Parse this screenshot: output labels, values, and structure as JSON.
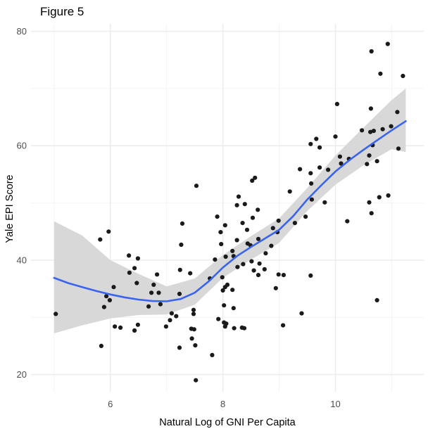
{
  "figure": {
    "title": "Figure 5"
  },
  "chart_data": {
    "type": "scatter",
    "title": "Figure 5",
    "xlabel": "Natural Log of GNI Per Capita",
    "ylabel": "Yale EPI Score",
    "x_domain": [
      4.59,
      11.57
    ],
    "y_domain": [
      17.0,
      81.3
    ],
    "x_major_ticks": [
      6,
      8,
      10
    ],
    "x_minor_ticks": [
      5,
      7,
      9,
      11
    ],
    "y_major_ticks": [
      20,
      40,
      60,
      80
    ],
    "y_minor_ticks": [
      30,
      50,
      70
    ],
    "grid": true,
    "legend_position": "none",
    "points": [
      [
        5.03,
        30.6
      ],
      [
        5.82,
        43.6
      ],
      [
        5.97,
        45.0
      ],
      [
        5.84,
        25.0
      ],
      [
        5.89,
        31.8
      ],
      [
        5.93,
        33.7
      ],
      [
        5.99,
        33.0
      ],
      [
        6.06,
        35.3
      ],
      [
        6.08,
        28.4
      ],
      [
        6.18,
        28.2
      ],
      [
        6.33,
        40.8
      ],
      [
        6.34,
        37.8
      ],
      [
        6.43,
        38.6
      ],
      [
        6.43,
        27.7
      ],
      [
        6.47,
        36.0
      ],
      [
        6.49,
        40.3
      ],
      [
        6.49,
        28.7
      ],
      [
        6.68,
        31.9
      ],
      [
        6.73,
        34.3
      ],
      [
        6.77,
        35.7
      ],
      [
        6.83,
        37.5
      ],
      [
        6.86,
        34.3
      ],
      [
        6.89,
        32.3
      ],
      [
        6.99,
        28.4
      ],
      [
        7.06,
        29.5
      ],
      [
        7.09,
        30.7
      ],
      [
        7.17,
        30.2
      ],
      [
        7.23,
        34.1
      ],
      [
        7.23,
        24.7
      ],
      [
        7.24,
        38.3
      ],
      [
        7.26,
        42.7
      ],
      [
        7.28,
        46.4
      ],
      [
        7.42,
        37.7
      ],
      [
        7.44,
        28.0
      ],
      [
        7.45,
        26.3
      ],
      [
        7.48,
        31.3
      ],
      [
        7.48,
        30.6
      ],
      [
        7.49,
        27.9
      ],
      [
        7.51,
        25.1
      ],
      [
        7.52,
        19.0
      ],
      [
        7.53,
        53.0
      ],
      [
        7.77,
        36.8
      ],
      [
        7.81,
        23.4
      ],
      [
        7.86,
        40.1
      ],
      [
        7.9,
        47.6
      ],
      [
        7.92,
        29.7
      ],
      [
        7.96,
        44.9
      ],
      [
        7.97,
        42.8
      ],
      [
        7.99,
        37.0
      ],
      [
        8.0,
        34.7
      ],
      [
        8.02,
        32.1
      ],
      [
        8.02,
        29.1
      ],
      [
        8.04,
        46.1
      ],
      [
        8.04,
        35.3
      ],
      [
        8.04,
        28.4
      ],
      [
        8.05,
        40.6
      ],
      [
        8.06,
        28.9
      ],
      [
        8.08,
        35.7
      ],
      [
        8.17,
        41.6
      ],
      [
        8.17,
        34.8
      ],
      [
        8.19,
        40.7
      ],
      [
        8.19,
        31.6
      ],
      [
        8.2,
        28.1
      ],
      [
        8.25,
        49.6
      ],
      [
        8.25,
        43.5
      ],
      [
        8.26,
        38.8
      ],
      [
        8.28,
        51.1
      ],
      [
        8.34,
        28.2
      ],
      [
        8.35,
        46.5
      ],
      [
        8.36,
        39.3
      ],
      [
        8.38,
        28.1
      ],
      [
        8.39,
        49.8
      ],
      [
        8.43,
        45.3
      ],
      [
        8.44,
        42.9
      ],
      [
        8.49,
        42.6
      ],
      [
        8.51,
        39.8
      ],
      [
        8.52,
        53.9
      ],
      [
        8.53,
        47.4
      ],
      [
        8.55,
        38.2
      ],
      [
        8.57,
        54.4
      ],
      [
        8.62,
        48.8
      ],
      [
        8.63,
        43.7
      ],
      [
        8.63,
        37.4
      ],
      [
        8.65,
        39.4
      ],
      [
        8.74,
        38.4
      ],
      [
        8.76,
        41.2
      ],
      [
        8.86,
        42.5
      ],
      [
        8.89,
        45.6
      ],
      [
        8.94,
        35.1
      ],
      [
        8.97,
        44.9
      ],
      [
        8.99,
        46.9
      ],
      [
        8.99,
        37.5
      ],
      [
        9.07,
        28.6
      ],
      [
        9.08,
        37.4
      ],
      [
        9.19,
        52.0
      ],
      [
        9.28,
        46.5
      ],
      [
        9.37,
        55.9
      ],
      [
        9.4,
        30.7
      ],
      [
        9.47,
        47.6
      ],
      [
        9.56,
        60.3
      ],
      [
        9.56,
        55.2
      ],
      [
        9.56,
        37.3
      ],
      [
        9.57,
        53.4
      ],
      [
        9.58,
        50.6
      ],
      [
        9.66,
        61.2
      ],
      [
        9.72,
        59.7
      ],
      [
        9.72,
        56.2
      ],
      [
        9.81,
        50.1
      ],
      [
        9.87,
        55.8
      ],
      [
        10.0,
        61.6
      ],
      [
        10.03,
        67.3
      ],
      [
        10.08,
        58.1
      ],
      [
        10.1,
        56.9
      ],
      [
        10.21,
        46.8
      ],
      [
        10.24,
        57.7
      ],
      [
        10.47,
        62.7
      ],
      [
        10.56,
        56.8
      ],
      [
        10.6,
        58.3
      ],
      [
        10.6,
        50.1
      ],
      [
        10.62,
        62.4
      ],
      [
        10.63,
        66.5
      ],
      [
        10.64,
        76.5
      ],
      [
        10.64,
        48.2
      ],
      [
        10.66,
        60.1
      ],
      [
        10.68,
        62.6
      ],
      [
        10.74,
        57.3
      ],
      [
        10.74,
        33.0
      ],
      [
        10.78,
        51.0
      ],
      [
        10.8,
        72.6
      ],
      [
        10.84,
        62.9
      ],
      [
        10.93,
        77.8
      ],
      [
        10.94,
        51.3
      ],
      [
        10.99,
        63.4
      ],
      [
        11.1,
        65.9
      ],
      [
        11.12,
        59.5
      ],
      [
        11.2,
        72.2
      ]
    ],
    "smooth_line": [
      [
        5.0,
        36.9
      ],
      [
        5.25,
        36.0
      ],
      [
        5.5,
        35.3
      ],
      [
        5.75,
        34.6
      ],
      [
        6.0,
        34.0
      ],
      [
        6.25,
        33.5
      ],
      [
        6.5,
        33.1
      ],
      [
        6.75,
        32.85
      ],
      [
        7.0,
        32.8
      ],
      [
        7.25,
        33.2
      ],
      [
        7.5,
        34.3
      ],
      [
        7.75,
        36.3
      ],
      [
        8.0,
        38.7
      ],
      [
        8.25,
        40.7
      ],
      [
        8.5,
        42.3
      ],
      [
        8.75,
        43.8
      ],
      [
        9.0,
        45.3
      ],
      [
        9.25,
        47.7
      ],
      [
        9.5,
        50.6
      ],
      [
        9.75,
        53.1
      ],
      [
        10.0,
        55.5
      ],
      [
        10.25,
        57.5
      ],
      [
        10.5,
        59.3
      ],
      [
        10.75,
        61.0
      ],
      [
        11.0,
        62.7
      ],
      [
        11.25,
        64.3
      ]
    ],
    "confidence_band": [
      [
        5.0,
        46.8,
        27.2
      ],
      [
        5.5,
        44.3,
        28.6
      ],
      [
        6.0,
        40.0,
        29.8
      ],
      [
        6.5,
        37.6,
        30.4
      ],
      [
        7.0,
        35.4,
        30.5
      ],
      [
        7.5,
        36.8,
        32.2
      ],
      [
        8.0,
        40.9,
        36.9
      ],
      [
        8.5,
        44.2,
        40.1
      ],
      [
        9.0,
        47.3,
        43.0
      ],
      [
        9.5,
        52.6,
        48.6
      ],
      [
        10.0,
        58.3,
        53.2
      ],
      [
        10.5,
        63.2,
        56.6
      ],
      [
        11.0,
        68.0,
        59.4
      ],
      [
        11.25,
        70.0,
        58.9
      ]
    ],
    "colors": {
      "smooth_line": "#3A64EC",
      "confidence_band": "#D8D8D8",
      "point": "#1A1A1A",
      "grid_major": "#EBEBEB",
      "grid_minor": "#F4F4F4",
      "tick_text": "#4D4D4D",
      "text": "#000000",
      "background": "#FFFFFF"
    }
  }
}
